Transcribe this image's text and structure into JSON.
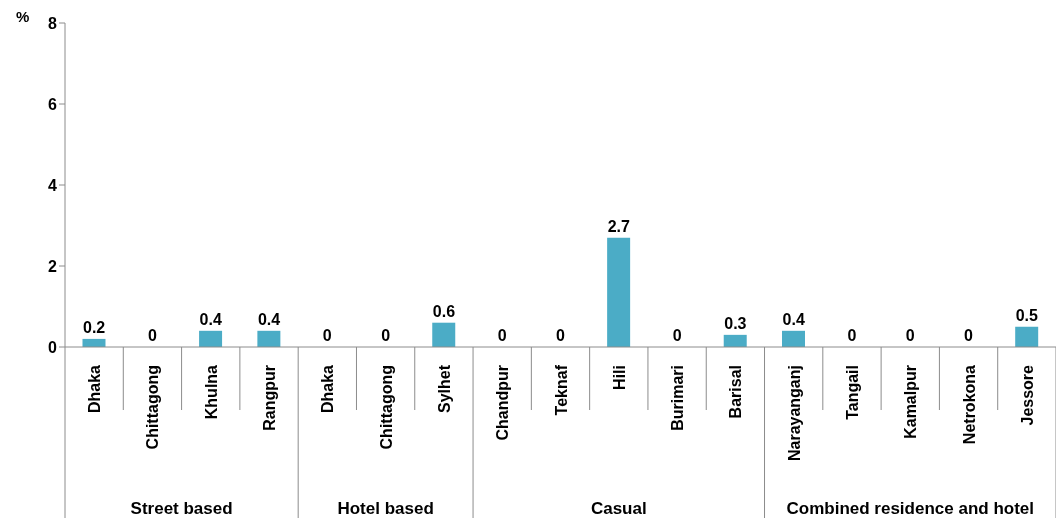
{
  "chart_data": {
    "type": "bar",
    "ylabel": "%",
    "categories": [
      "Dhaka",
      "Chittagong",
      "Khulna",
      "Rangpur",
      "Dhaka",
      "Chittagong",
      "Sylhet",
      "Chandpur",
      "Teknaf",
      "Hili",
      "Burimari",
      "Barisal",
      "Narayanganj",
      "Tangail",
      "Kamalpur",
      "Netrokona",
      "Jessore"
    ],
    "values": [
      0.2,
      0,
      0.4,
      0.4,
      0,
      0,
      0.6,
      0,
      0,
      2.7,
      0,
      0.3,
      0.4,
      0,
      0,
      0,
      0.5
    ],
    "color": "#4bacc6",
    "ylim": [
      0,
      8
    ],
    "yticks": [
      0,
      2,
      4,
      6,
      8
    ],
    "grid": false,
    "legend": false,
    "data_labels": true,
    "annotations": [
      "Street based",
      "Hotel based",
      "Casual",
      "Combined residence and hotel"
    ]
  }
}
